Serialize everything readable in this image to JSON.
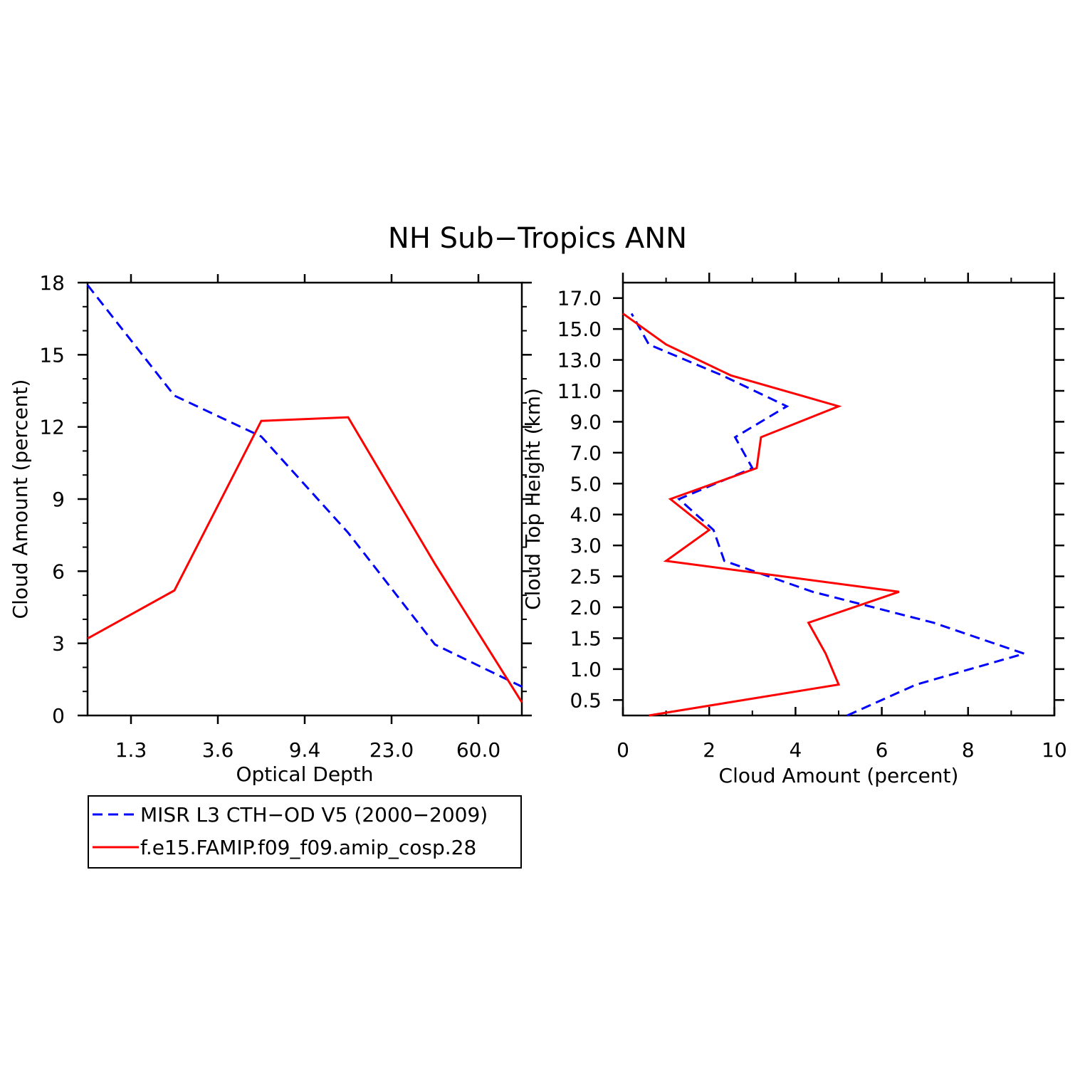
{
  "title": "NH Sub−Tropics ANN",
  "colors": {
    "obs": "#0000ff",
    "model": "#ff0000",
    "axis": "#000000"
  },
  "legend": {
    "entries": [
      {
        "name": "MISR L3 CTH−OD V5 (2000−2009)",
        "style": "dashed",
        "color": "#0000ff"
      },
      {
        "name": "f.e15.FAMIP.f09_f09.amip_cosp.28",
        "style": "solid",
        "color": "#ff0000"
      }
    ]
  },
  "chart_data": [
    {
      "type": "line",
      "title": "",
      "xlabel": "Optical Depth",
      "ylabel": "Cloud Amount (percent)",
      "x_index": [
        0,
        1,
        2,
        3,
        4,
        5
      ],
      "xticks": [
        {
          "pos": 0.5,
          "label": "1.3"
        },
        {
          "pos": 1.5,
          "label": "3.6"
        },
        {
          "pos": 2.5,
          "label": "9.4"
        },
        {
          "pos": 3.5,
          "label": "23.0"
        },
        {
          "pos": 4.5,
          "label": "60.0"
        }
      ],
      "xlim": [
        0,
        5
      ],
      "ylim": [
        0,
        18
      ],
      "yticks": [
        0,
        3,
        6,
        9,
        12,
        15,
        18
      ],
      "ytick_labels": [
        "0",
        "3",
        "6",
        "9",
        "12",
        "15",
        "18"
      ],
      "series": [
        {
          "name": "MISR L3 CTH−OD V5 (2000−2009)",
          "style": "dashed",
          "values": [
            17.9,
            13.3,
            11.6,
            7.6,
            2.95,
            1.2
          ]
        },
        {
          "name": "f.e15.FAMIP.f09_f09.amip_cosp.28",
          "style": "solid",
          "values": [
            3.2,
            5.2,
            12.25,
            12.4,
            6.3,
            0.55
          ]
        }
      ]
    },
    {
      "type": "line",
      "orientation": "horizontal",
      "title": "",
      "xlabel": "Cloud Amount (percent)",
      "ylabel": "Cloud Top Height (km)",
      "xlim": [
        0,
        10
      ],
      "xticks": [
        0,
        2,
        4,
        6,
        8,
        10
      ],
      "xtick_labels": [
        "0",
        "2",
        "4",
        "6",
        "8",
        "10"
      ],
      "level_index": [
        0,
        1,
        2,
        3,
        4,
        5,
        6,
        7,
        8,
        9,
        10,
        11,
        12,
        13
      ],
      "ylim": [
        0,
        14
      ],
      "yticks": [
        {
          "pos": 0.5,
          "label": "0.5"
        },
        {
          "pos": 1.5,
          "label": "1.0"
        },
        {
          "pos": 2.5,
          "label": "1.5"
        },
        {
          "pos": 3.5,
          "label": "2.0"
        },
        {
          "pos": 4.5,
          "label": "2.5"
        },
        {
          "pos": 5.5,
          "label": "3.0"
        },
        {
          "pos": 6.5,
          "label": "4.0"
        },
        {
          "pos": 7.5,
          "label": "5.0"
        },
        {
          "pos": 8.5,
          "label": "7.0"
        },
        {
          "pos": 9.5,
          "label": "9.0"
        },
        {
          "pos": 10.5,
          "label": "11.0"
        },
        {
          "pos": 11.5,
          "label": "13.0"
        },
        {
          "pos": 12.5,
          "label": "15.0"
        },
        {
          "pos": 13.5,
          "label": "17.0"
        }
      ],
      "series": [
        {
          "name": "MISR L3 CTH−OD V5 (2000−2009)",
          "style": "dashed",
          "values": [
            5.2,
            6.8,
            9.3,
            7.2,
            4.4,
            2.35,
            2.1,
            1.3,
            3.0,
            2.6,
            3.8,
            2.3,
            0.6,
            0.2
          ]
        },
        {
          "name": "f.e15.FAMIP.f09_f09.amip_cosp.28",
          "style": "solid",
          "values": [
            0.6,
            5.0,
            4.7,
            4.3,
            6.4,
            1.0,
            2.0,
            1.1,
            3.1,
            3.2,
            5.0,
            2.5,
            1.0,
            0.0
          ]
        }
      ]
    }
  ]
}
